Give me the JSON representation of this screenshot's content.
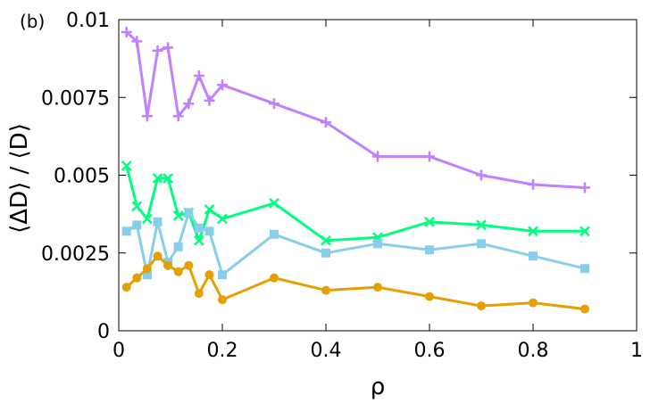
{
  "chart_data": {
    "type": "line",
    "panel_label": "(b)",
    "xlabel": "ρ",
    "ylabel": "⟨ΔD⟩ / ⟨D⟩",
    "xlim": [
      0,
      1
    ],
    "ylim": [
      0,
      0.01
    ],
    "xticks": [
      {
        "value": 0,
        "label": "0"
      },
      {
        "value": 0.2,
        "label": "0.2"
      },
      {
        "value": 0.4,
        "label": "0.4"
      },
      {
        "value": 0.6,
        "label": "0.6"
      },
      {
        "value": 0.8,
        "label": "0.8"
      },
      {
        "value": 1,
        "label": "1"
      }
    ],
    "yticks": [
      {
        "value": 0,
        "label": "0"
      },
      {
        "value": 0.0025,
        "label": "0.0025"
      },
      {
        "value": 0.005,
        "label": "0.005"
      },
      {
        "value": 0.0075,
        "label": "0.0075"
      },
      {
        "value": 0.01,
        "label": "0.01"
      }
    ],
    "grid": false,
    "series": [
      {
        "color": "#c080ff",
        "marker": "plus",
        "x": [
          0.015,
          0.035,
          0.055,
          0.075,
          0.095,
          0.115,
          0.135,
          0.155,
          0.175,
          0.2,
          0.3,
          0.4,
          0.5,
          0.6,
          0.7,
          0.8,
          0.9
        ],
        "y": [
          0.0096,
          0.0093,
          0.0069,
          0.009,
          0.0091,
          0.0069,
          0.0073,
          0.0082,
          0.0074,
          0.0079,
          0.0073,
          0.0067,
          0.0056,
          0.0056,
          0.005,
          0.0047,
          0.0046
        ]
      },
      {
        "color": "#00ff7f",
        "marker": "x",
        "x": [
          0.015,
          0.035,
          0.055,
          0.075,
          0.095,
          0.115,
          0.135,
          0.155,
          0.175,
          0.2,
          0.3,
          0.4,
          0.5,
          0.6,
          0.7,
          0.8,
          0.9
        ],
        "y": [
          0.0053,
          0.004,
          0.0036,
          0.0049,
          0.0049,
          0.0037,
          0.0038,
          0.0029,
          0.0039,
          0.0036,
          0.0041,
          0.0029,
          0.003,
          0.0035,
          0.0034,
          0.0032,
          0.0032
        ]
      },
      {
        "color": "#87ceeb",
        "marker": "square",
        "x": [
          0.015,
          0.035,
          0.055,
          0.075,
          0.095,
          0.115,
          0.135,
          0.155,
          0.175,
          0.2,
          0.3,
          0.4,
          0.5,
          0.6,
          0.7,
          0.8,
          0.9
        ],
        "y": [
          0.0032,
          0.0034,
          0.0018,
          0.0035,
          0.0022,
          0.0027,
          0.0038,
          0.0033,
          0.0032,
          0.0018,
          0.0031,
          0.0025,
          0.0028,
          0.0026,
          0.0028,
          0.0024,
          0.002
        ]
      },
      {
        "color": "#e69f00",
        "marker": "circle",
        "x": [
          0.015,
          0.035,
          0.055,
          0.075,
          0.095,
          0.115,
          0.135,
          0.155,
          0.175,
          0.2,
          0.3,
          0.4,
          0.5,
          0.6,
          0.7,
          0.8,
          0.9
        ],
        "y": [
          0.0014,
          0.0017,
          0.002,
          0.0024,
          0.0021,
          0.0019,
          0.0021,
          0.0012,
          0.0018,
          0.001,
          0.0017,
          0.0013,
          0.0014,
          0.0011,
          0.0008,
          0.0009,
          0.0007
        ]
      }
    ]
  }
}
